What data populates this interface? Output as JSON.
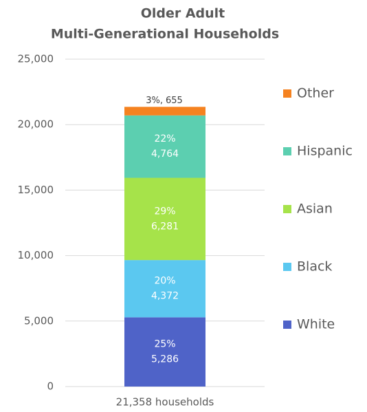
{
  "chart_data": {
    "type": "stacked_bar",
    "title": [
      "Older Adult",
      "Multi-Generational Households"
    ],
    "categories": [
      "21,358 households"
    ],
    "series": [
      {
        "name": "White",
        "color": "#4f63c8",
        "values": [
          5286
        ],
        "value_labels": [
          "5,286"
        ],
        "share_labels": [
          "25%"
        ]
      },
      {
        "name": "Black",
        "color": "#5bc8f0",
        "values": [
          4372
        ],
        "value_labels": [
          "4,372"
        ],
        "share_labels": [
          "20%"
        ]
      },
      {
        "name": "Asian",
        "color": "#a6e34a",
        "values": [
          6281
        ],
        "value_labels": [
          "6,281"
        ],
        "share_labels": [
          "29%"
        ]
      },
      {
        "name": "Hispanic",
        "color": "#5ccfb0",
        "values": [
          4764
        ],
        "value_labels": [
          "4,764"
        ],
        "share_labels": [
          "22%"
        ]
      },
      {
        "name": "Other",
        "color": "#f58220",
        "values": [
          655
        ],
        "value_labels": [
          "655"
        ],
        "share_labels": [
          "3%,"
        ]
      }
    ],
    "ylim": [
      0,
      25000
    ],
    "yticks": [
      0,
      {
        "value": 5000,
        "label": "5,000"
      },
      {
        "value": 10000,
        "label": "10,000"
      },
      {
        "value": 15000,
        "label": "15,000"
      },
      {
        "value": 20000,
        "label": "20,000"
      },
      {
        "value": 25000,
        "label": "25,000"
      }
    ],
    "grid": true,
    "legend": "right"
  }
}
